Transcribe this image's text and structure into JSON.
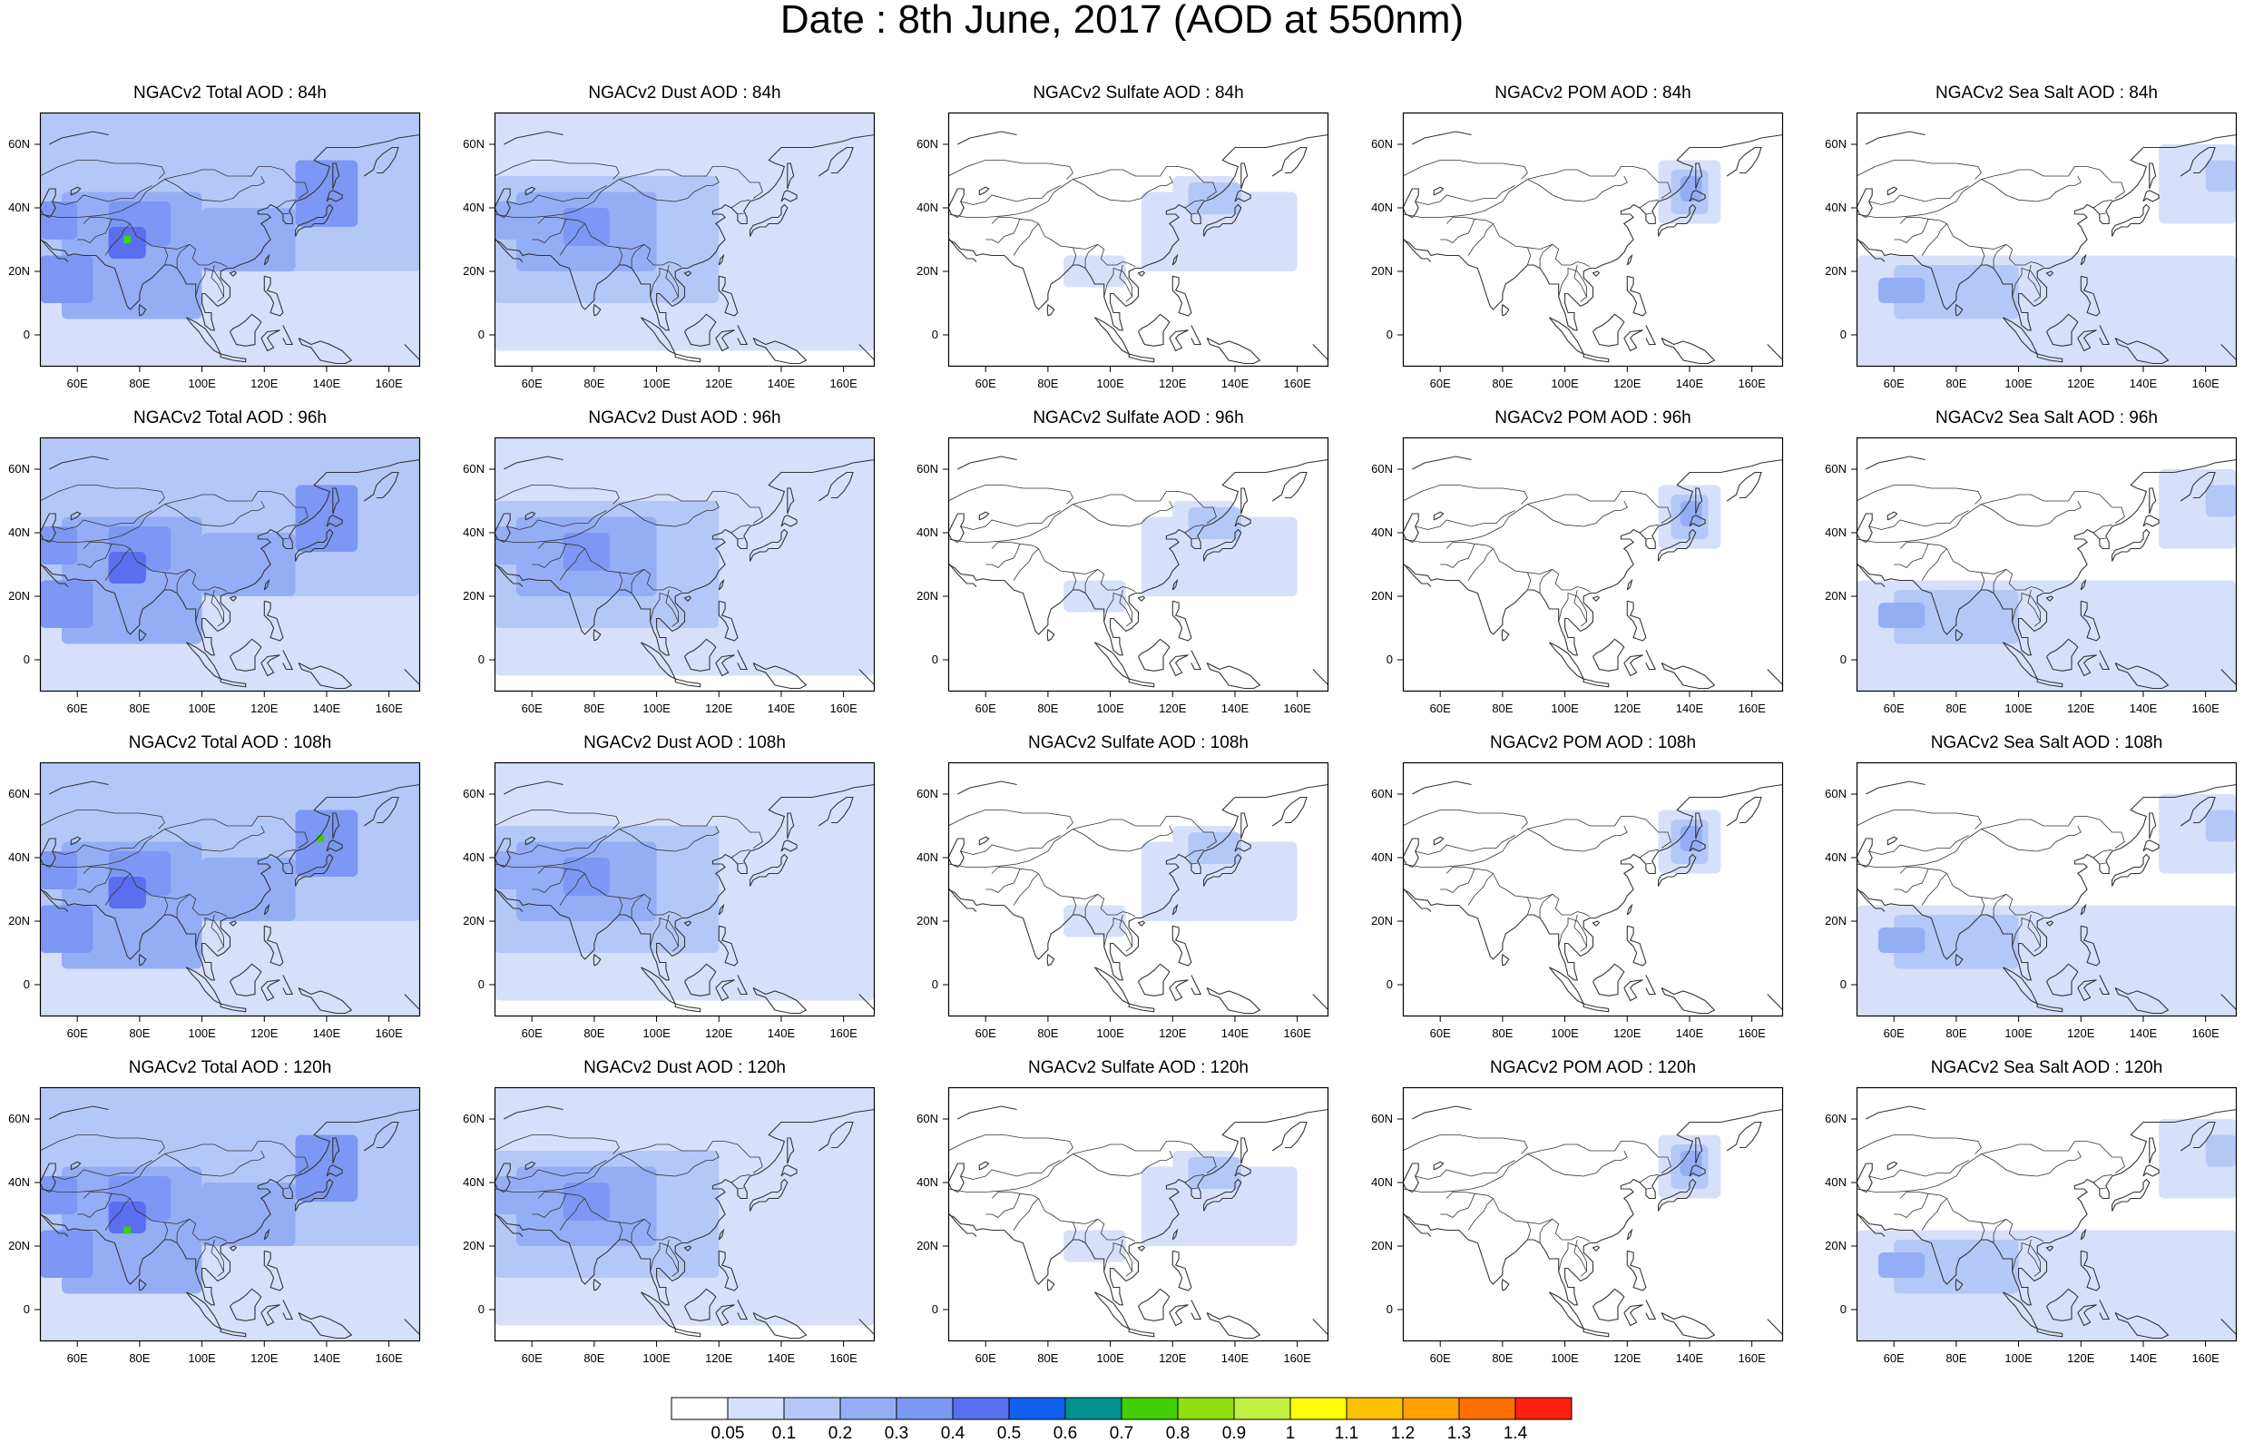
{
  "figure": {
    "title": "Date : 8th June, 2017 (AOD at 550nm)"
  },
  "map_axes": {
    "lat_labels": [
      "60N",
      "40N",
      "20N",
      "0"
    ],
    "lat_values": [
      60,
      40,
      20,
      0
    ],
    "lon_labels": [
      "60E",
      "80E",
      "100E",
      "120E",
      "140E",
      "160E"
    ],
    "lon_values": [
      60,
      80,
      100,
      120,
      140,
      160
    ],
    "lon_range": [
      48,
      170
    ],
    "lat_range": [
      -10,
      70
    ]
  },
  "columns": [
    "Total",
    "Dust",
    "Sulfate",
    "POM",
    "Sea Salt"
  ],
  "rows": [
    "84h",
    "96h",
    "108h",
    "120h"
  ],
  "panels": [
    [
      "NGACv2 Total AOD : 84h",
      "NGACv2 Dust AOD : 84h",
      "NGACv2 Sulfate AOD : 84h",
      "NGACv2 POM AOD : 84h",
      "NGACv2 Sea Salt AOD : 84h"
    ],
    [
      "NGACv2 Total AOD : 96h",
      "NGACv2 Dust AOD : 96h",
      "NGACv2 Sulfate AOD : 96h",
      "NGACv2 POM AOD : 96h",
      "NGACv2 Sea Salt AOD : 96h"
    ],
    [
      "NGACv2 Total AOD : 108h",
      "NGACv2 Dust AOD : 108h",
      "NGACv2 Sulfate AOD : 108h",
      "NGACv2 POM AOD : 108h",
      "NGACv2 Sea Salt AOD : 108h"
    ],
    [
      "NGACv2 Total AOD : 120h",
      "NGACv2 Dust AOD : 120h",
      "NGACv2 Sulfate AOD : 120h",
      "NGACv2 POM AOD : 120h",
      "NGACv2 Sea Salt  AOD : 120h"
    ]
  ],
  "colorbar": {
    "labels": [
      "0.05",
      "0.1",
      "0.2",
      "0.3",
      "0.4",
      "0.5",
      "0.6",
      "0.7",
      "0.8",
      "0.9",
      "1",
      "1.1",
      "1.2",
      "1.3",
      "1.4"
    ],
    "colors": [
      "#ffffff",
      "#d6e0fa",
      "#b4c8f8",
      "#94aef6",
      "#7c98f4",
      "#5a6ef0",
      "#1060f0",
      "#009090",
      "#40d000",
      "#90e010",
      "#c0f040",
      "#ffff00",
      "#ffc000",
      "#ffa000",
      "#ff7000",
      "#ff2010"
    ]
  },
  "map_colors": {
    "c1": "#d6e0fa",
    "c2": "#b4c8f8",
    "c3": "#94aef6",
    "c4": "#7c98f4",
    "c5": "#5a6ef0",
    "hot": "#40d000",
    "coast": "#333333"
  }
}
